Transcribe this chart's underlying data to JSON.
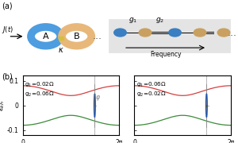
{
  "ring_A_color": "#4d9de0",
  "ring_B_color": "#e8b87a",
  "node_blue_color": "#3a7fc1",
  "node_tan_color": "#c9a060",
  "yellow_sq_color": "#d4c03a",
  "red_color": "#d44040",
  "green_color": "#3a8c3a",
  "blue_circle_color": "#2255aa",
  "g1_label_left": "g$_1$=0.02Ω",
  "g2_label_left": "g$_2$=0.06Ω",
  "g1_label_right": "g$_1$=0.06Ω",
  "g2_label_right": "g$_2$=0.02Ω",
  "ylim": [
    -0.12,
    0.12
  ],
  "yticks": [
    -0.1,
    0.0,
    0.1
  ],
  "xlim": [
    0,
    6.2832
  ],
  "xticks": [
    0,
    6.2832
  ],
  "xticklabels": [
    "0",
    "2π"
  ]
}
